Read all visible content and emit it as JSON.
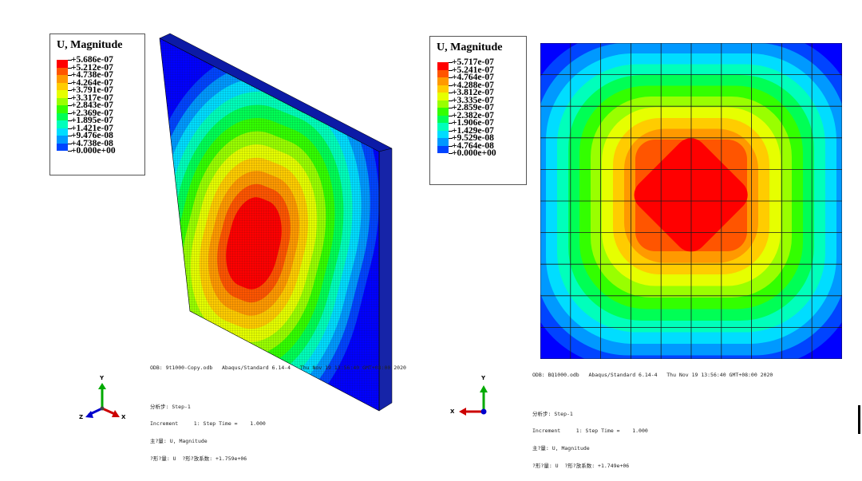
{
  "left": {
    "legend": {
      "title": "U, Magnitude",
      "values": [
        "+5.686e-07",
        "+5.212e-07",
        "+4.738e-07",
        "+4.264e-07",
        "+3.791e-07",
        "+3.317e-07",
        "+2.843e-07",
        "+2.369e-07",
        "+1.895e-07",
        "+1.421e-07",
        "+9.476e-08",
        "+4.738e-08",
        "+0.000e+00"
      ]
    },
    "odb_line": "ODB: 9t1000-Copy.odb   Abaqus/Standard 6.14-4   Thu Nov 19 13:56:40 GMT+08:00 2020",
    "step_line": "分析步: Step-1",
    "increment_line": "Increment     1: Step Time =    1.000",
    "primary_var_line": "主?量: U, Magnitude",
    "deformed_var_line": "?形?量: U  ?形?放系数: +1.759e+06",
    "triad": {
      "y": "Y",
      "z": "Z",
      "x": "X"
    }
  },
  "right": {
    "legend": {
      "title": "U, Magnitude",
      "values": [
        "+5.717e-07",
        "+5.241e-07",
        "+4.764e-07",
        "+4.288e-07",
        "+3.812e-07",
        "+3.335e-07",
        "+2.859e-07",
        "+2.382e-07",
        "+1.906e-07",
        "+1.429e-07",
        "+9.529e-08",
        "+4.764e-08",
        "+0.000e+00"
      ]
    },
    "odb_line": "ODB: BQ1000.odb   Abaqus/Standard 6.14-4   Thu Nov 19 13:56:40 GMT+08:00 2020",
    "step_line": "分析步: Step-1",
    "increment_line": "Increment     1: Step Time =    1.000",
    "primary_var_line": "主?量: U, Magnitude",
    "deformed_var_line": "?形?量: U  ?形?放系数: +1.749e+06",
    "triad": {
      "y": "Y",
      "x": "X"
    }
  },
  "colors": {
    "contour": [
      "#ff0000",
      "#ff5500",
      "#ff9900",
      "#ffcc00",
      "#e6ff00",
      "#99ff00",
      "#33ff00",
      "#00ff55",
      "#00ffbb",
      "#00ddff",
      "#0099ff",
      "#0044ff",
      "#0000ff"
    ],
    "mesh_line": "#1a1a1a",
    "triad_y": "#00aa00",
    "triad_x": "#cc0000",
    "triad_z": "#0000cc"
  }
}
